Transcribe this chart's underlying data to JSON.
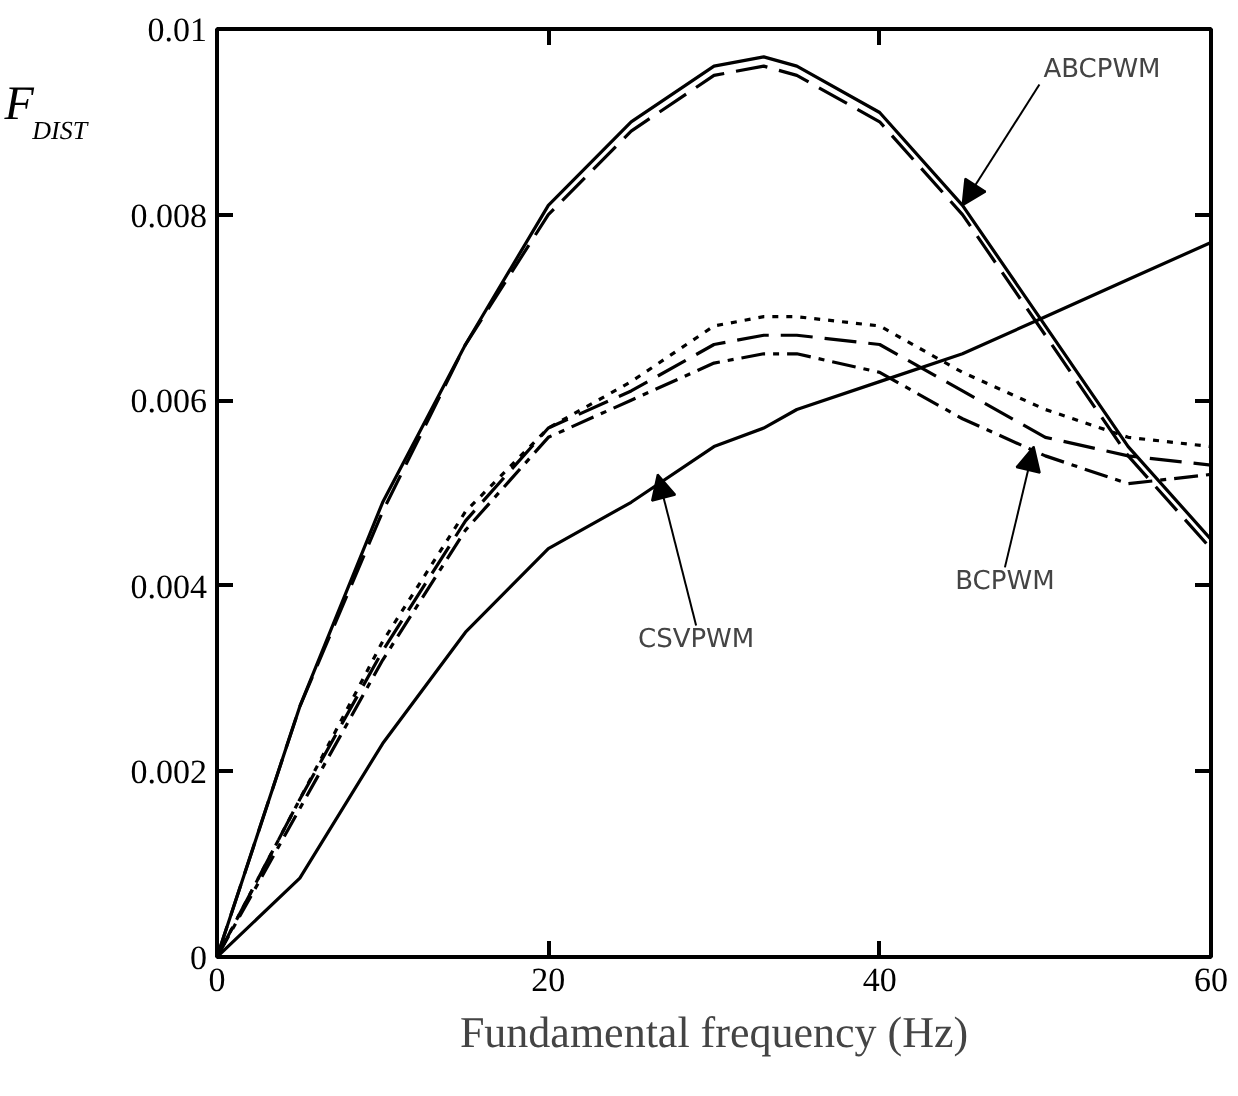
{
  "chart_data": {
    "type": "line",
    "xlabel": "Fundamental frequency (Hz)",
    "ylabel": "F$_{DIST}$",
    "xlim": [
      0,
      60
    ],
    "ylim": [
      0,
      0.01
    ],
    "xticks": [
      0,
      20,
      40,
      60
    ],
    "yticks": [
      0,
      0.002,
      0.004,
      0.006,
      0.008,
      {
        "value": 0.01,
        "label": "0.01"
      }
    ],
    "grid": false,
    "marker": "none",
    "x": [
      0,
      5,
      10,
      15,
      20,
      25,
      30,
      33,
      35,
      40,
      45,
      50,
      55,
      60
    ],
    "series": [
      {
        "color": "#000000",
        "line_style": "solid",
        "values": [
          0,
          0.0027,
          0.0049,
          0.0066,
          0.0081,
          0.009,
          0.0096,
          0.0097,
          0.0096,
          0.0091,
          0.0081,
          0.0068,
          0.0055,
          0.0045
        ]
      },
      {
        "color": "#000000",
        "line_style": "dashed",
        "values": [
          0,
          0.0027,
          0.0048,
          0.0066,
          0.008,
          0.0089,
          0.0095,
          0.0096,
          0.0095,
          0.009,
          0.008,
          0.0067,
          0.0054,
          0.0044
        ]
      },
      {
        "color": "#000000",
        "line_style": "dotted",
        "values": [
          0,
          0.0017,
          0.0034,
          0.0048,
          0.0057,
          0.0062,
          0.0068,
          0.0069,
          0.0069,
          0.0068,
          0.0063,
          0.0059,
          0.0056,
          0.0055
        ]
      },
      {
        "color": "#000000",
        "line_style": "dashed",
        "values": [
          0,
          0.0017,
          0.0033,
          0.0047,
          0.0057,
          0.0061,
          0.0066,
          0.0067,
          0.0067,
          0.0066,
          0.0061,
          0.0056,
          0.0054,
          0.0053
        ]
      },
      {
        "color": "#000000",
        "line_style": "dashdot",
        "values": [
          0,
          0.0016,
          0.0032,
          0.0046,
          0.0056,
          0.006,
          0.0064,
          0.0065,
          0.0065,
          0.0063,
          0.0058,
          0.0054,
          0.0051,
          0.0052
        ]
      },
      {
        "color": "#000000",
        "line_style": "solid",
        "values": [
          0,
          0.00085,
          0.0023,
          0.0035,
          0.0044,
          0.0049,
          0.0055,
          0.0057,
          0.0059,
          0.0062,
          0.0065,
          0.0069,
          0.0073,
          0.0077
        ]
      }
    ],
    "annotations": [
      {
        "text": "ABCPWM",
        "x": 45,
        "y": 0.0081
      },
      {
        "text": "BCPWM",
        "x": 49.3,
        "y": 0.0055
      },
      {
        "text": "CSVPWM",
        "x": 26.6,
        "y": 0.0052
      }
    ]
  }
}
